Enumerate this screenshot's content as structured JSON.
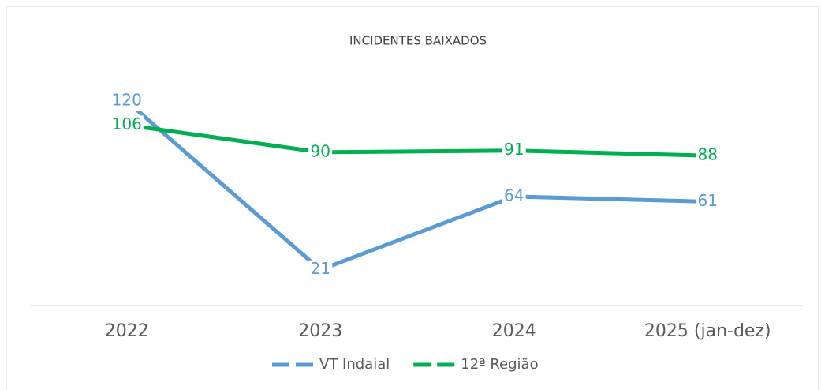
{
  "chart_data": {
    "type": "line",
    "title": "INCIDENTES BAIXADOS",
    "categories": [
      "2022",
      "2023",
      "2024",
      "2025 (jan-dez)"
    ],
    "series": [
      {
        "name": "VT Indaial",
        "color": "#5b9bd5",
        "values": [
          120,
          21,
          64,
          61
        ]
      },
      {
        "name": "12ª Região",
        "color": "#00b050",
        "values": [
          106,
          90,
          91,
          88
        ]
      }
    ],
    "ylim": [
      0,
      140
    ],
    "legend": "bottom"
  }
}
